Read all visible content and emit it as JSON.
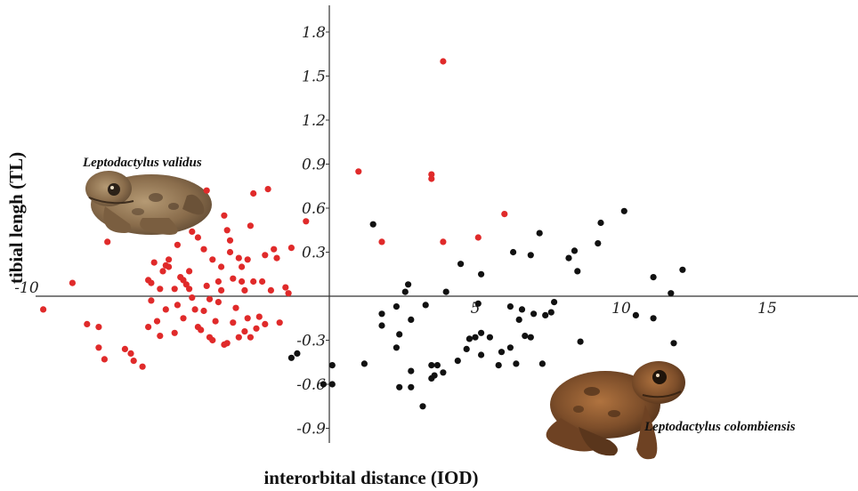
{
  "chart_data": {
    "type": "scatter",
    "title": "",
    "xlabel": "interorbital distance (IOD)",
    "ylabel": "tibial lengh (TL)",
    "xlim": [
      -10.2,
      18
    ],
    "ylim": [
      -1.0,
      1.98
    ],
    "x_ticks": [
      {
        "v": -10,
        "t": "-10"
      },
      {
        "v": 5,
        "t": "5"
      },
      {
        "v": 10,
        "t": "10"
      },
      {
        "v": 15,
        "t": "15"
      }
    ],
    "y_ticks": [
      {
        "v": 1.8,
        "t": "1.8"
      },
      {
        "v": 1.5,
        "t": "1.5"
      },
      {
        "v": 1.2,
        "t": "1.2"
      },
      {
        "v": 0.9,
        "t": "0.9"
      },
      {
        "v": 0.6,
        "t": "0.6"
      },
      {
        "v": 0.3,
        "t": "0.3"
      },
      {
        "v": -0.3,
        "t": "-0.3"
      },
      {
        "v": -0.6,
        "t": "-0.6"
      },
      {
        "v": -0.9,
        "t": "-0.9"
      }
    ],
    "grid": false,
    "annotations": [
      "Leptodactylus validus",
      "Leptodactylus colombiensis"
    ],
    "series": [
      {
        "name": "Leptodactylus validus",
        "color": "#e02a2a",
        "points": [
          [
            -9.8,
            -0.09
          ],
          [
            -8.8,
            0.09
          ],
          [
            -8.3,
            -0.19
          ],
          [
            -7.9,
            -0.21
          ],
          [
            -7.9,
            -0.35
          ],
          [
            -7.7,
            -0.43
          ],
          [
            -7.6,
            0.37
          ],
          [
            -7.0,
            -0.36
          ],
          [
            -6.8,
            -0.39
          ],
          [
            -6.7,
            -0.44
          ],
          [
            -6.4,
            -0.48
          ],
          [
            -6.2,
            -0.21
          ],
          [
            -6.2,
            0.11
          ],
          [
            -6.1,
            -0.03
          ],
          [
            -6.1,
            0.09
          ],
          [
            -6.0,
            0.23
          ],
          [
            -5.9,
            -0.17
          ],
          [
            -5.8,
            -0.27
          ],
          [
            -5.8,
            0.05
          ],
          [
            -5.7,
            0.17
          ],
          [
            -5.6,
            0.21
          ],
          [
            -5.6,
            -0.09
          ],
          [
            -5.5,
            0.2
          ],
          [
            -5.5,
            0.25
          ],
          [
            -5.3,
            0.05
          ],
          [
            -5.3,
            -0.25
          ],
          [
            -5.2,
            0.35
          ],
          [
            -5.2,
            -0.06
          ],
          [
            -5.1,
            0.13
          ],
          [
            -5.0,
            0.11
          ],
          [
            -5.0,
            -0.15
          ],
          [
            -4.9,
            0.08
          ],
          [
            -4.8,
            0.05
          ],
          [
            -4.8,
            0.17
          ],
          [
            -4.7,
            0.44
          ],
          [
            -4.7,
            -0.01
          ],
          [
            -4.6,
            -0.09
          ],
          [
            -4.5,
            0.4
          ],
          [
            -4.5,
            -0.21
          ],
          [
            -4.4,
            -0.23
          ],
          [
            -4.3,
            0.32
          ],
          [
            -4.3,
            -0.1
          ],
          [
            -4.2,
            0.07
          ],
          [
            -4.2,
            0.72
          ],
          [
            -4.1,
            -0.02
          ],
          [
            -4.1,
            -0.28
          ],
          [
            -4.0,
            0.25
          ],
          [
            -4.0,
            -0.3
          ],
          [
            -3.9,
            -0.17
          ],
          [
            -3.8,
            0.1
          ],
          [
            -3.8,
            -0.04
          ],
          [
            -3.7,
            0.2
          ],
          [
            -3.7,
            0.04
          ],
          [
            -3.6,
            -0.33
          ],
          [
            -3.6,
            0.55
          ],
          [
            -3.5,
            0.45
          ],
          [
            -3.5,
            -0.32
          ],
          [
            -3.4,
            0.38
          ],
          [
            -3.4,
            0.3
          ],
          [
            -3.3,
            0.12
          ],
          [
            -3.3,
            -0.18
          ],
          [
            -3.2,
            -0.08
          ],
          [
            -3.1,
            0.26
          ],
          [
            -3.1,
            -0.28
          ],
          [
            -3.0,
            0.2
          ],
          [
            -3.0,
            0.1
          ],
          [
            -2.9,
            0.04
          ],
          [
            -2.9,
            -0.24
          ],
          [
            -2.8,
            -0.15
          ],
          [
            -2.8,
            0.25
          ],
          [
            -2.7,
            0.48
          ],
          [
            -2.7,
            -0.28
          ],
          [
            -2.6,
            0.7
          ],
          [
            -2.6,
            0.1
          ],
          [
            -2.5,
            -0.22
          ],
          [
            -2.4,
            -0.14
          ],
          [
            -2.3,
            0.1
          ],
          [
            -2.2,
            0.28
          ],
          [
            -2.2,
            -0.19
          ],
          [
            -2.1,
            0.73
          ],
          [
            -2.0,
            0.04
          ],
          [
            -1.9,
            0.32
          ],
          [
            -1.8,
            0.26
          ],
          [
            -1.7,
            -0.18
          ],
          [
            -1.5,
            0.06
          ],
          [
            -1.4,
            0.02
          ],
          [
            -1.3,
            0.33
          ],
          [
            -0.8,
            0.51
          ],
          [
            1.0,
            0.85
          ],
          [
            1.8,
            0.37
          ],
          [
            3.5,
            0.83
          ],
          [
            3.5,
            0.8
          ],
          [
            3.9,
            1.6
          ],
          [
            3.9,
            0.37
          ],
          [
            5.1,
            0.4
          ],
          [
            6.0,
            0.56
          ]
        ]
      },
      {
        "name": "Leptodactylus colombiensis",
        "color": "#111111",
        "points": [
          [
            -1.3,
            -0.42
          ],
          [
            -1.1,
            -0.39
          ],
          [
            -0.2,
            -0.6
          ],
          [
            0.1,
            -0.6
          ],
          [
            0.1,
            -0.47
          ],
          [
            1.2,
            -0.46
          ],
          [
            1.5,
            0.49
          ],
          [
            1.8,
            -0.12
          ],
          [
            1.8,
            -0.2
          ],
          [
            2.3,
            -0.35
          ],
          [
            2.3,
            -0.07
          ],
          [
            2.4,
            -0.26
          ],
          [
            2.4,
            -0.62
          ],
          [
            2.6,
            0.03
          ],
          [
            2.7,
            0.08
          ],
          [
            2.8,
            -0.16
          ],
          [
            2.8,
            -0.51
          ],
          [
            2.8,
            -0.62
          ],
          [
            3.2,
            -0.75
          ],
          [
            3.3,
            -0.06
          ],
          [
            3.5,
            -0.47
          ],
          [
            3.5,
            -0.56
          ],
          [
            3.6,
            -0.54
          ],
          [
            3.7,
            -0.47
          ],
          [
            3.9,
            -0.52
          ],
          [
            4.0,
            0.03
          ],
          [
            4.4,
            -0.44
          ],
          [
            4.5,
            0.22
          ],
          [
            4.7,
            -0.36
          ],
          [
            4.8,
            -0.29
          ],
          [
            5.0,
            -0.28
          ],
          [
            5.1,
            -0.05
          ],
          [
            5.2,
            0.15
          ],
          [
            5.2,
            -0.25
          ],
          [
            5.2,
            -0.4
          ],
          [
            5.5,
            -0.28
          ],
          [
            5.8,
            -0.47
          ],
          [
            5.9,
            -0.38
          ],
          [
            6.2,
            -0.35
          ],
          [
            6.2,
            -0.07
          ],
          [
            6.3,
            0.3
          ],
          [
            6.4,
            -0.46
          ],
          [
            6.5,
            -0.16
          ],
          [
            6.6,
            -0.09
          ],
          [
            6.7,
            -0.27
          ],
          [
            6.9,
            -0.28
          ],
          [
            6.9,
            0.28
          ],
          [
            7.0,
            -0.12
          ],
          [
            7.2,
            0.43
          ],
          [
            7.3,
            -0.46
          ],
          [
            7.4,
            -0.13
          ],
          [
            7.6,
            -0.11
          ],
          [
            7.7,
            -0.04
          ],
          [
            8.2,
            0.26
          ],
          [
            8.4,
            0.31
          ],
          [
            8.5,
            0.17
          ],
          [
            8.6,
            -0.31
          ],
          [
            9.2,
            0.36
          ],
          [
            9.3,
            0.5
          ],
          [
            10.1,
            0.58
          ],
          [
            10.5,
            -0.13
          ],
          [
            11.1,
            -0.15
          ],
          [
            11.1,
            0.13
          ],
          [
            11.7,
            0.02
          ],
          [
            11.8,
            -0.32
          ],
          [
            12.1,
            0.18
          ]
        ]
      }
    ]
  }
}
